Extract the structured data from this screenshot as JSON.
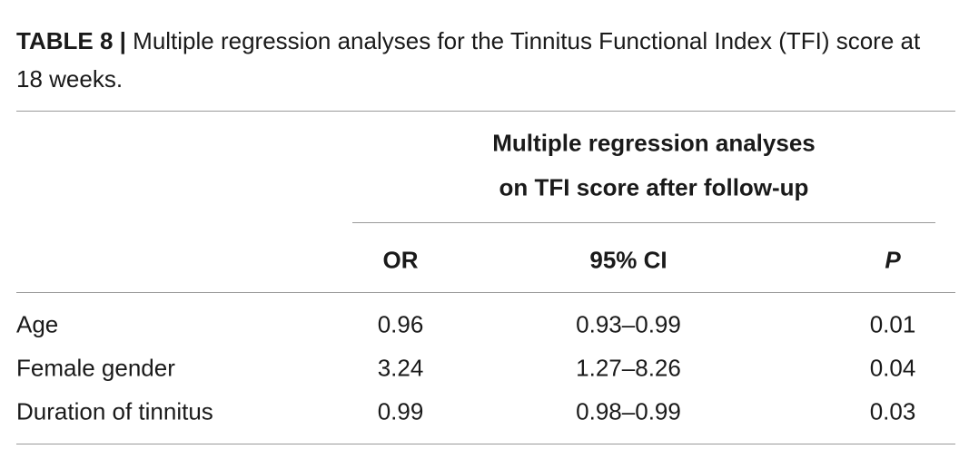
{
  "title": {
    "label": "TABLE 8 |",
    "text": "Multiple regression analyses for the Tinnitus Functional Index (TFI) score at 18 weeks."
  },
  "table": {
    "group_header": [
      "Multiple regression analyses",
      "on TFI score after follow-up"
    ],
    "columns": [
      "OR",
      "95% CI",
      "P"
    ],
    "rows": [
      [
        "Age",
        "0.96",
        "0.93–0.99",
        "0.01"
      ],
      [
        "Female gender",
        "3.24",
        "1.27–8.26",
        "0.04"
      ],
      [
        "Duration of tinnitus",
        "0.99",
        "0.98–0.99",
        "0.03"
      ]
    ]
  }
}
